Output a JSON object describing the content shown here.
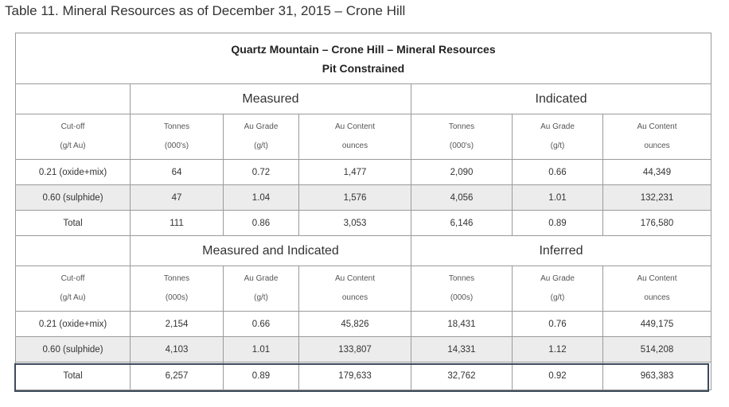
{
  "caption": "Table 11. Mineral Resources as of December 31, 2015 – Crone Hill",
  "table": {
    "title_line1": "Quartz Mountain – Crone Hill – Mineral Resources",
    "title_line2": "Pit Constrained",
    "section1": {
      "group_left": "Measured",
      "group_right": "Indicated",
      "headers": [
        [
          "Cut-off",
          "(g/t Au)"
        ],
        [
          "Tonnes",
          "(000's)"
        ],
        [
          "Au Grade",
          "(g/t)"
        ],
        [
          "Au Content",
          "ounces"
        ],
        [
          "Tonnes",
          "(000's)"
        ],
        [
          "Au Grade",
          "(g/t)"
        ],
        [
          "Au Content",
          "ounces"
        ]
      ],
      "rows": [
        [
          "0.21 (oxide+mix)",
          "64",
          "0.72",
          "1,477",
          "2,090",
          "0.66",
          "44,349"
        ],
        [
          "0.60 (sulphide)",
          "47",
          "1.04",
          "1,576",
          "4,056",
          "1.01",
          "132,231"
        ],
        [
          "Total",
          "111",
          "0.86",
          "3,053",
          "6,146",
          "0.89",
          "176,580"
        ]
      ]
    },
    "section2": {
      "group_left": "Measured and Indicated",
      "group_right": "Inferred",
      "headers": [
        [
          "Cut-off",
          "(g/t Au)"
        ],
        [
          "Tonnes",
          "(000s)"
        ],
        [
          "Au Grade",
          "(g/t)"
        ],
        [
          "Au Content",
          "ounces"
        ],
        [
          "Tonnes",
          "(000s)"
        ],
        [
          "Au Grade",
          "(g/t)"
        ],
        [
          "Au Content",
          "ounces"
        ]
      ],
      "rows": [
        [
          "0.21 (oxide+mix)",
          "2,154",
          "0.66",
          "45,826",
          "18,431",
          "0.76",
          "449,175"
        ],
        [
          "0.60 (sulphide)",
          "4,103",
          "1.01",
          "133,807",
          "14,331",
          "1.12",
          "514,208"
        ],
        [
          "Total",
          "6,257",
          "0.89",
          "179,633",
          "32,762",
          "0.92",
          "963,383"
        ]
      ]
    }
  }
}
